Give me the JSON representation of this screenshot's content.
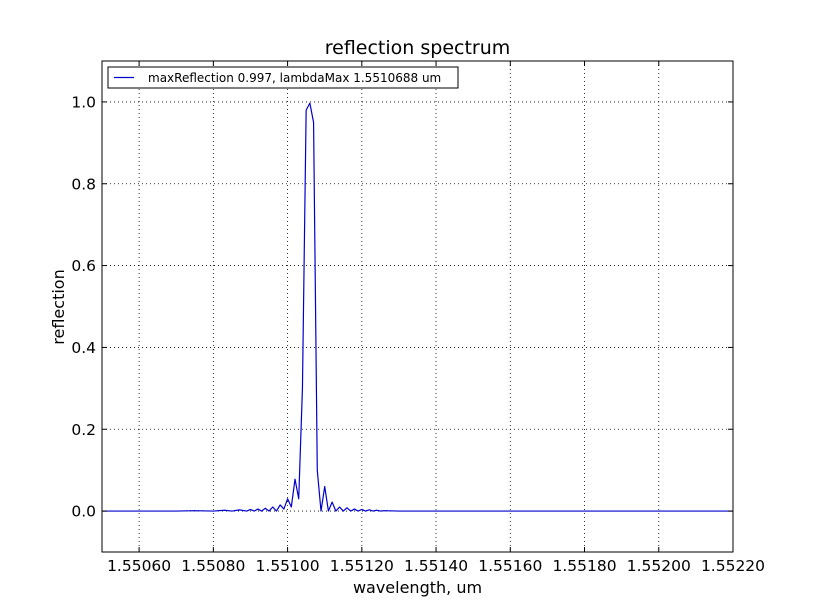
{
  "chart_data": {
    "type": "line",
    "title": "reflection spectrum",
    "xlabel": "wavelength, um",
    "ylabel": "reflection",
    "xlim": [
      1.5505,
      1.5522
    ],
    "ylim": [
      -0.1,
      1.1
    ],
    "grid": true,
    "legend_position": "top-left",
    "x_ticks": [
      1.5506,
      1.5508,
      1.551,
      1.5512,
      1.5514,
      1.5516,
      1.5518,
      1.552,
      1.5522
    ],
    "x_tick_labels": [
      "1.55060",
      "1.55080",
      "1.55100",
      "1.55120",
      "1.55140",
      "1.55160",
      "1.55180",
      "1.55200",
      "1.55220"
    ],
    "y_ticks": [
      0.0,
      0.2,
      0.4,
      0.6,
      0.8,
      1.0
    ],
    "y_tick_labels": [
      "0.0",
      "0.2",
      "0.4",
      "0.6",
      "0.8",
      "1.0"
    ],
    "series": [
      {
        "name": "maxReflection 0.997, lambdaMax 1.5510688 um",
        "color": "#0000cc",
        "x": [
          1.5505,
          1.5507,
          1.55075,
          1.5508,
          1.55083,
          1.55085,
          1.55087,
          1.55089,
          1.5509,
          1.55091,
          1.55092,
          1.55093,
          1.55094,
          1.55095,
          1.55096,
          1.55097,
          1.55098,
          1.55099,
          1.551,
          1.55101,
          1.55102,
          1.55103,
          1.55104,
          1.55105,
          1.55106,
          1.55107,
          1.55108,
          1.55109,
          1.5511,
          1.55111,
          1.55112,
          1.55113,
          1.55114,
          1.55115,
          1.55116,
          1.55117,
          1.55118,
          1.55119,
          1.5512,
          1.55121,
          1.55122,
          1.55123,
          1.55124,
          1.55125,
          1.55126,
          1.5513,
          1.5514,
          1.5522
        ],
        "y": [
          0.0,
          0.0,
          0.001,
          0.0,
          0.002,
          0.0,
          0.003,
          0.0,
          0.004,
          0.0,
          0.005,
          0.0,
          0.007,
          0.0,
          0.01,
          0.0,
          0.015,
          0.005,
          0.03,
          0.01,
          0.078,
          0.03,
          0.3,
          0.98,
          0.997,
          0.95,
          0.1,
          0.0,
          0.06,
          0.0,
          0.022,
          0.0,
          0.01,
          0.0,
          0.008,
          0.0,
          0.005,
          0.0,
          0.004,
          0.0,
          0.003,
          0.0,
          0.002,
          0.0,
          0.001,
          0.0,
          0.0,
          0.0
        ]
      }
    ]
  }
}
